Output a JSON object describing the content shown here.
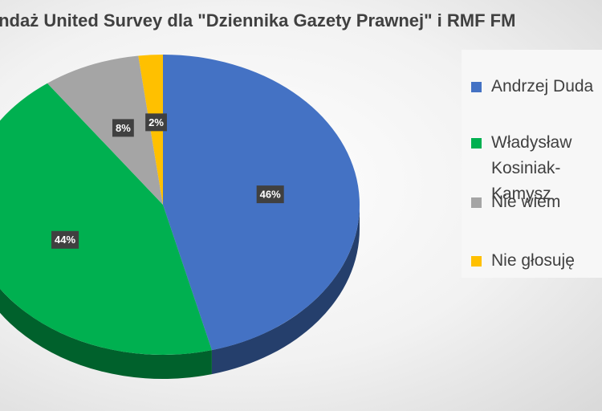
{
  "chart_data": {
    "type": "pie3d",
    "title": "Sondaż United Survey dla \"Dziennika Gazety Prawnej\" i RMF FM",
    "categories": [
      "Andrzej Duda",
      "Władysław Kosiniak-Kamysz",
      "Nie wiem",
      "Nie głosuję"
    ],
    "values": [
      46,
      44,
      8,
      2
    ],
    "value_labels": [
      "46%",
      "44%",
      "8%",
      "2%"
    ],
    "colors": [
      "#4472c4",
      "#00b050",
      "#a5a5a5",
      "#ffc000"
    ],
    "legend": "right"
  }
}
